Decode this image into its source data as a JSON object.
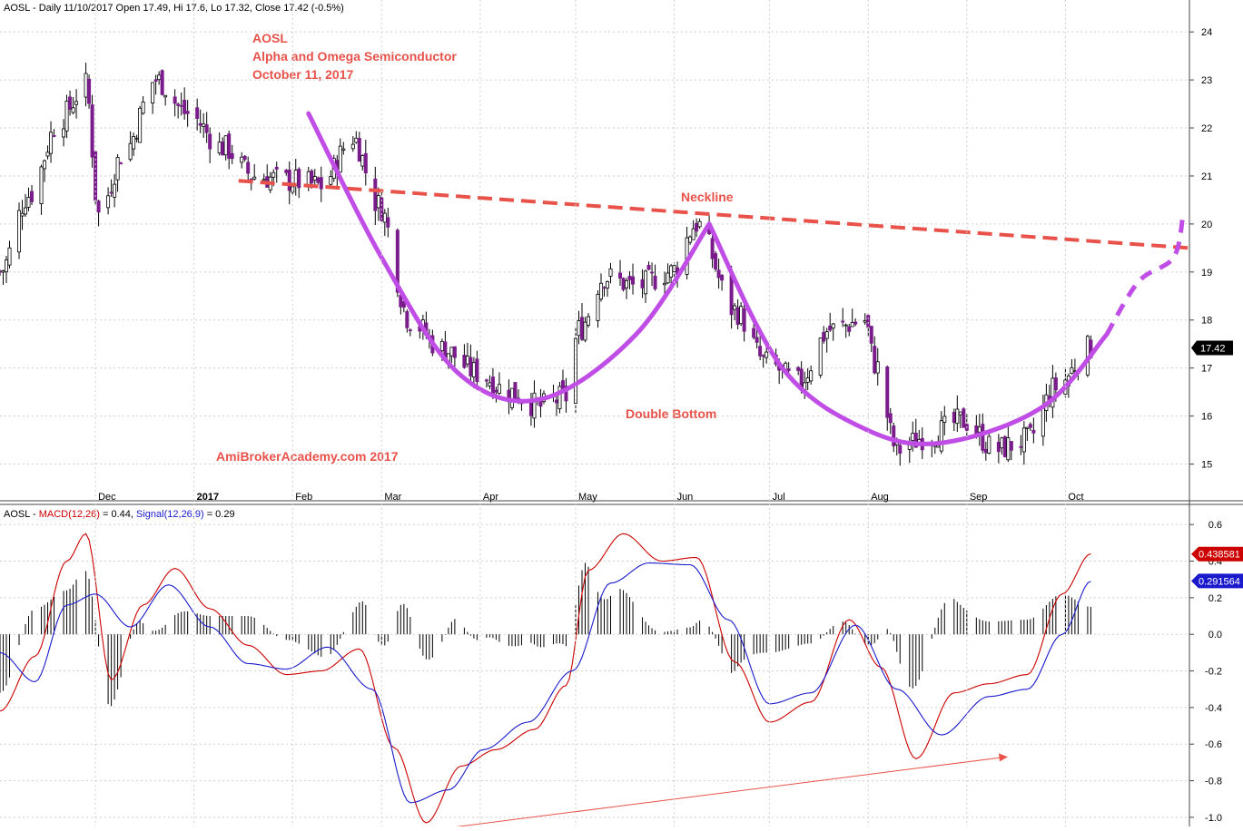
{
  "chart_data": [
    {
      "type": "candlestick",
      "panel": "price",
      "symbol": "AOSL",
      "header": {
        "prefix": "AOSL - Daily 11/10/2017 Open 17.49, Hi 17.6, Lo 17.32, Close 17.42 (-0.5%)"
      },
      "ylim": [
        14.5,
        24.4
      ],
      "yticks": [
        15,
        16,
        17,
        18,
        19,
        20,
        21,
        22,
        23,
        24
      ],
      "ytick_labels": [
        "15",
        "16",
        "17",
        "18",
        "19",
        "20",
        "21",
        "22",
        "23",
        "24"
      ],
      "last_close_label": "17.42",
      "last_close": 17.42,
      "months": [
        "Dec",
        "2017",
        "Feb",
        "Mar",
        "Apr",
        "May",
        "Jun",
        "Jul",
        "Aug",
        "Sep",
        "Oct"
      ],
      "x_range": [
        "2016-11-01",
        "2017-11-10"
      ],
      "month_positions_date": [
        "2016-12-01",
        "2017-01-01",
        "2017-02-01",
        "2017-03-01",
        "2017-04-01",
        "2017-05-01",
        "2017-06-01",
        "2017-07-01",
        "2017-08-01",
        "2017-09-01",
        "2017-10-02"
      ],
      "candles_visual": "approximate daily OHLC shape following the curve",
      "approx_closes": {
        "x": [
          "2016-11-01",
          "2016-11-10",
          "2016-11-20",
          "2016-11-28",
          "2016-12-02",
          "2016-12-10",
          "2016-12-20",
          "2016-12-30",
          "2017-01-10",
          "2017-01-20",
          "2017-01-31",
          "2017-02-10",
          "2017-02-20",
          "2017-02-28",
          "2017-03-10",
          "2017-03-20",
          "2017-03-31",
          "2017-04-10",
          "2017-04-20",
          "2017-04-28",
          "2017-05-02",
          "2017-05-10",
          "2017-05-20",
          "2017-05-31",
          "2017-06-08",
          "2017-06-20",
          "2017-06-30",
          "2017-07-10",
          "2017-07-20",
          "2017-07-31",
          "2017-08-03",
          "2017-08-10",
          "2017-08-20",
          "2017-08-31",
          "2017-09-10",
          "2017-09-20",
          "2017-09-29",
          "2017-10-10"
        ],
        "y": [
          19.0,
          20.6,
          22.2,
          22.9,
          20.2,
          21.5,
          23.0,
          22.3,
          21.6,
          21.0,
          20.9,
          20.8,
          21.8,
          20.4,
          18.0,
          17.4,
          16.9,
          16.5,
          16.2,
          16.4,
          17.8,
          18.9,
          18.7,
          19.0,
          20.0,
          18.2,
          17.1,
          16.7,
          17.8,
          18.0,
          17.1,
          15.3,
          15.6,
          15.9,
          15.3,
          15.5,
          16.6,
          17.42
        ]
      },
      "annotations": {
        "title_lines": [
          "AOSL",
          "Alpha and Omega Semiconductor",
          "October 11, 2017"
        ],
        "neckline": "Neckline",
        "double_bottom": "Double Bottom",
        "watermark": "AmiBrokerAcademy.com  2017"
      },
      "neckline_points": {
        "x": [
          "2017-01-15",
          "2017-11-10"
        ],
        "y": [
          20.9,
          19.5
        ]
      },
      "colors": {
        "candle": "#7a1c8c",
        "neckline": "#e8524a",
        "curve": "#c04ee6",
        "annotation": "#e8524a"
      }
    },
    {
      "type": "line",
      "panel": "macd",
      "header": {
        "prefix": "AOSL - ",
        "macd_label": "MACD(12,26)",
        "macd_value_text": " = 0.44, ",
        "signal_label": "Signal(12,26,9)",
        "signal_value_text": " = 0.29"
      },
      "ylim": [
        -1.05,
        0.7
      ],
      "yticks": [
        -1.0,
        -0.8,
        -0.6,
        -0.4,
        -0.2,
        0.0,
        0.2,
        0.4,
        0.6
      ],
      "ytick_labels": [
        "-1.0",
        "-0.8",
        "-0.6",
        "-0.4",
        "-0.2",
        "0.0",
        "0.2",
        "0.4",
        "0.6"
      ],
      "macd_last_label": "0.438581",
      "signal_last_label": "0.291564",
      "macd_last": 0.4386,
      "signal_last": 0.2916,
      "series": [
        {
          "name": "MACD(12,26)",
          "color": "#cc0000",
          "x": [
            "2016-11-01",
            "2016-11-12",
            "2016-11-22",
            "2016-11-28",
            "2016-12-06",
            "2016-12-16",
            "2016-12-26",
            "2017-01-06",
            "2017-01-18",
            "2017-01-30",
            "2017-02-10",
            "2017-02-22",
            "2017-03-05",
            "2017-03-15",
            "2017-03-26",
            "2017-04-06",
            "2017-04-18",
            "2017-04-28",
            "2017-05-05",
            "2017-05-16",
            "2017-05-28",
            "2017-06-08",
            "2017-06-20",
            "2017-07-01",
            "2017-07-14",
            "2017-07-26",
            "2017-08-05",
            "2017-08-16",
            "2017-08-28",
            "2017-09-08",
            "2017-09-20",
            "2017-10-01",
            "2017-10-10"
          ],
          "y": [
            -0.42,
            -0.12,
            0.4,
            0.55,
            -0.25,
            0.16,
            0.36,
            0.14,
            -0.06,
            -0.22,
            -0.2,
            -0.08,
            -0.62,
            -1.03,
            -0.72,
            -0.63,
            -0.52,
            -0.28,
            0.35,
            0.55,
            0.4,
            0.42,
            -0.15,
            -0.48,
            -0.37,
            0.08,
            -0.18,
            -0.68,
            -0.32,
            -0.27,
            -0.22,
            0.22,
            0.44
          ]
        },
        {
          "name": "Signal(12,26,9)",
          "color": "#1a1acc",
          "x": [
            "2016-11-01",
            "2016-11-12",
            "2016-11-22",
            "2016-12-01",
            "2016-12-12",
            "2016-12-24",
            "2017-01-06",
            "2017-01-18",
            "2017-01-30",
            "2017-02-12",
            "2017-02-26",
            "2017-03-10",
            "2017-03-22",
            "2017-04-02",
            "2017-04-16",
            "2017-04-30",
            "2017-05-12",
            "2017-05-24",
            "2017-06-06",
            "2017-06-18",
            "2017-07-01",
            "2017-07-14",
            "2017-07-28",
            "2017-08-10",
            "2017-08-24",
            "2017-09-08",
            "2017-09-20",
            "2017-10-01",
            "2017-10-10"
          ],
          "y": [
            -0.1,
            -0.26,
            0.16,
            0.22,
            0.04,
            0.27,
            0.04,
            -0.16,
            -0.19,
            -0.07,
            -0.3,
            -0.92,
            -0.85,
            -0.63,
            -0.48,
            -0.2,
            0.28,
            0.39,
            0.38,
            0.08,
            -0.38,
            -0.32,
            0.05,
            -0.3,
            -0.55,
            -0.34,
            -0.3,
            0.0,
            0.29
          ]
        }
      ],
      "histogram_note": "MACD minus Signal, drawn as thin black bars"
    }
  ]
}
